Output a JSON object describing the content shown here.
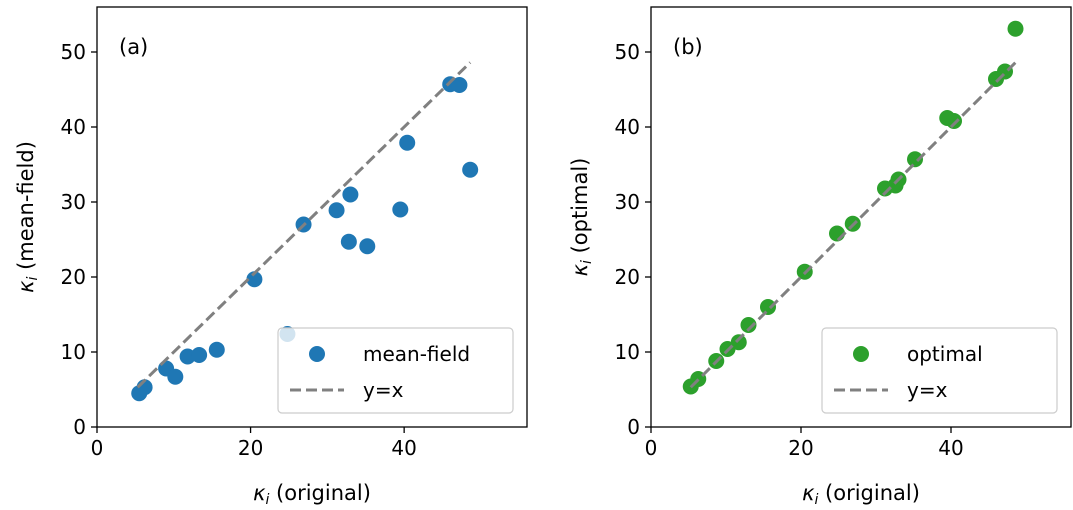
{
  "chart_data": [
    {
      "type": "scatter",
      "panel_label": "(a)",
      "xlabel": "κ_i (original)",
      "ylabel": "κ_i (mean-field)",
      "xlim": [
        0,
        56
      ],
      "ylim": [
        0,
        56
      ],
      "xticks": [
        0,
        20,
        40
      ],
      "yticks": [
        0,
        10,
        20,
        30,
        40,
        50
      ],
      "grid": false,
      "legend_position": "lower right",
      "series": [
        {
          "name": "mean-field",
          "kind": "points",
          "color": "#1f77b4",
          "points": [
            [
              5.5,
              4.5
            ],
            [
              6.2,
              5.3
            ],
            [
              9.0,
              7.8
            ],
            [
              10.2,
              6.7
            ],
            [
              11.8,
              9.4
            ],
            [
              13.3,
              9.6
            ],
            [
              15.6,
              10.3
            ],
            [
              20.5,
              19.7
            ],
            [
              24.8,
              12.4
            ],
            [
              26.9,
              27.0
            ],
            [
              31.2,
              28.9
            ],
            [
              32.8,
              24.7
            ],
            [
              33.0,
              31.0
            ],
            [
              35.2,
              24.1
            ],
            [
              39.5,
              29.0
            ],
            [
              40.4,
              37.9
            ],
            [
              46.0,
              45.7
            ],
            [
              47.2,
              45.6
            ],
            [
              48.6,
              34.3
            ]
          ]
        },
        {
          "name": "y=x",
          "kind": "dashed-line",
          "color": "#808080",
          "points": [
            [
              5.3,
              5.3
            ],
            [
              48.6,
              48.6
            ]
          ]
        }
      ]
    },
    {
      "type": "scatter",
      "panel_label": "(b)",
      "xlabel": "κ_i (original)",
      "ylabel": "κ_i (optimal)",
      "xlim": [
        0,
        56
      ],
      "ylim": [
        0,
        56
      ],
      "xticks": [
        0,
        20,
        40
      ],
      "yticks": [
        0,
        10,
        20,
        30,
        40,
        50
      ],
      "grid": false,
      "legend_position": "lower right",
      "series": [
        {
          "name": "optimal",
          "kind": "points",
          "color": "#2ca02c",
          "points": [
            [
              5.3,
              5.4
            ],
            [
              6.3,
              6.4
            ],
            [
              8.7,
              8.8
            ],
            [
              10.2,
              10.4
            ],
            [
              11.7,
              11.3
            ],
            [
              13.0,
              13.6
            ],
            [
              15.6,
              16.0
            ],
            [
              20.5,
              20.7
            ],
            [
              24.8,
              25.8
            ],
            [
              26.9,
              27.1
            ],
            [
              31.2,
              31.8
            ],
            [
              32.6,
              32.2
            ],
            [
              33.0,
              33.0
            ],
            [
              35.2,
              35.7
            ],
            [
              39.5,
              41.2
            ],
            [
              40.4,
              40.8
            ],
            [
              46.0,
              46.4
            ],
            [
              47.2,
              47.4
            ],
            [
              48.6,
              53.1
            ]
          ]
        },
        {
          "name": "y=x",
          "kind": "dashed-line",
          "color": "#808080",
          "points": [
            [
              5.3,
              5.3
            ],
            [
              48.6,
              48.6
            ]
          ]
        }
      ]
    }
  ]
}
